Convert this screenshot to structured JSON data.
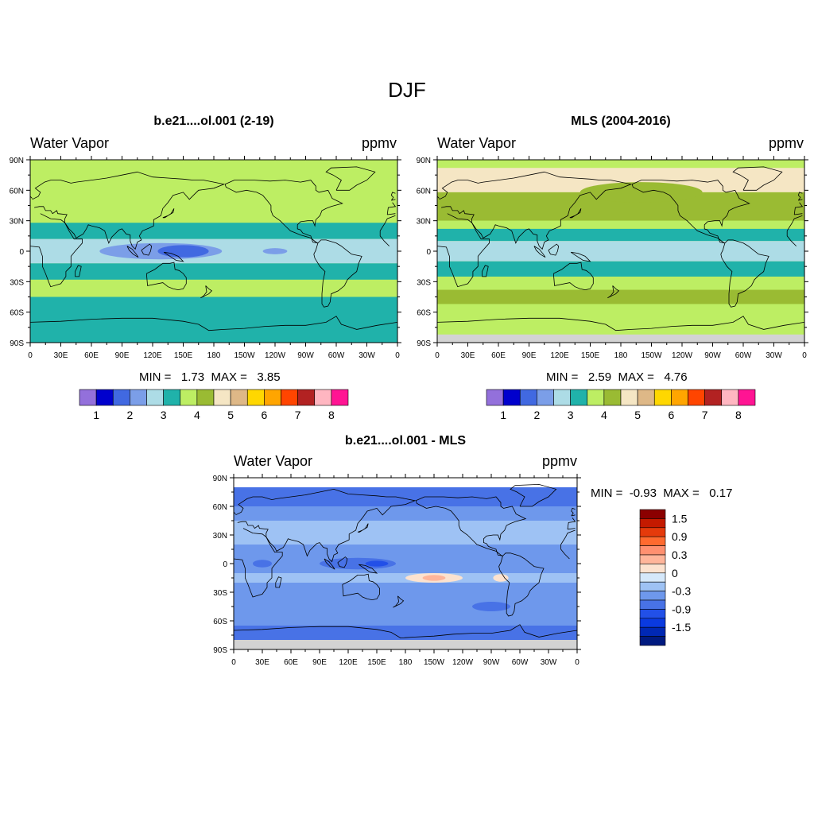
{
  "figure": {
    "title": "DJF"
  },
  "panels": [
    {
      "title": "b.e21....ol.001 (2-19)",
      "variable": "Water Vapor",
      "units": "ppmv",
      "stats_text": "MIN =   1.73  MAX =   3.85",
      "min": 1.73,
      "max": 3.85
    },
    {
      "title": "MLS (2004-2016)",
      "variable": "Water Vapor",
      "units": "ppmv",
      "stats_text": "MIN =   2.59  MAX =   4.76",
      "min": 2.59,
      "max": 4.76
    },
    {
      "title": "b.e21....ol.001 - MLS",
      "variable": "Water Vapor",
      "units": "ppmv",
      "stats_text": "MIN =  -0.93  MAX =   0.17",
      "min": -0.93,
      "max": 0.17
    }
  ],
  "axes": {
    "lat_labels": [
      "90N",
      "60N",
      "30N",
      "0",
      "30S",
      "60S",
      "90S"
    ],
    "lon_labels": [
      "0",
      "30E",
      "60E",
      "90E",
      "120E",
      "150E",
      "180",
      "150W",
      "120W",
      "90W",
      "60W",
      "30W",
      "0"
    ]
  },
  "colorbars": {
    "absolute": {
      "colors": [
        "#9370DB",
        "#0000CD",
        "#4169E1",
        "#7B9EE8",
        "#ADDCE6",
        "#20B2AA",
        "#BDEE63",
        "#9ABB33",
        "#F5E6C4",
        "#DEB887",
        "#FFD700",
        "#FFA500",
        "#FF4500",
        "#B22222",
        "#FFB6C1",
        "#FF1493"
      ],
      "labels": [
        "1",
        "2",
        "3",
        "4",
        "5",
        "6",
        "7",
        "8"
      ]
    },
    "difference": {
      "colors": [
        "#8B0000",
        "#C41A00",
        "#E53A0B",
        "#FF6A2F",
        "#FF9070",
        "#FFB59A",
        "#FCE2CF",
        "#D5E8FA",
        "#9EC2F4",
        "#6E98EC",
        "#4872E6",
        "#2250E8",
        "#0A3AE0",
        "#0028B4",
        "#001A80"
      ],
      "labels": [
        "1.5",
        "0.9",
        "0.3",
        "0",
        "-0.3",
        "-0.9",
        "-1.5"
      ]
    }
  }
}
